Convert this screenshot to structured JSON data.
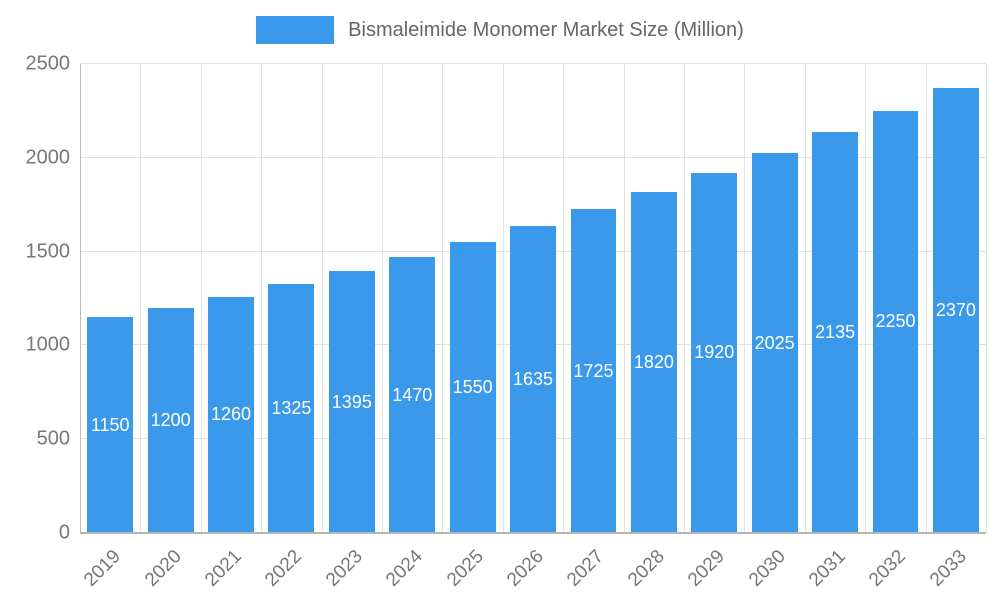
{
  "legend": {
    "position": "top"
  },
  "chart_data": {
    "type": "bar",
    "title": "Bismaleimide Monomer Market Size (Million)",
    "categories": [
      "2019",
      "2020",
      "2021",
      "2022",
      "2023",
      "2024",
      "2025",
      "2026",
      "2027",
      "2028",
      "2029",
      "2030",
      "2031",
      "2032",
      "2033"
    ],
    "values": [
      1150,
      1200,
      1260,
      1325,
      1395,
      1470,
      1550,
      1635,
      1725,
      1820,
      1920,
      2025,
      2135,
      2250,
      2370
    ],
    "xlabel": "",
    "ylabel": "",
    "ylim": [
      0,
      2500
    ],
    "yticks": [
      0,
      500,
      1000,
      1500,
      2000,
      2500
    ],
    "grid": true,
    "legend_position": "top",
    "bar_color": "#3a99ea",
    "value_label_color": "#ffffff",
    "tick_label_color": "#777777",
    "title_color": "#666666",
    "gridline_color": "#e2e2e2"
  }
}
